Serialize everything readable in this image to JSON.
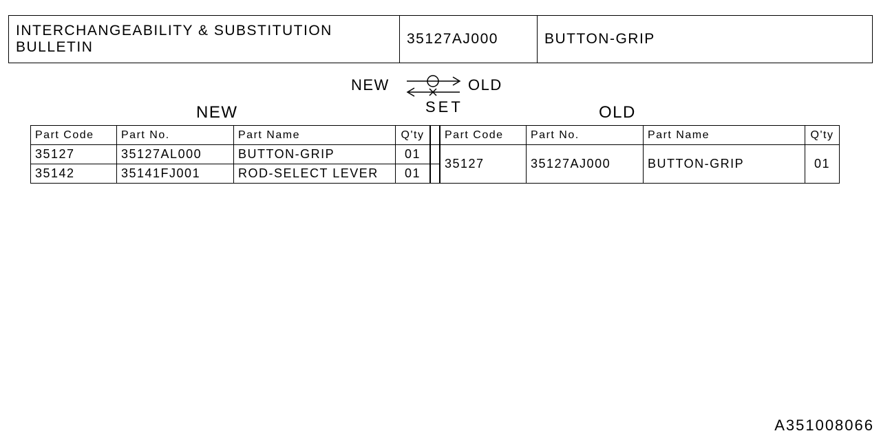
{
  "header": {
    "title": "INTERCHANGEABILITY & SUBSTITUTION BULLETIN",
    "part_no": "35127AJ000",
    "part_name": "BUTTON-GRIP"
  },
  "diagram": {
    "new": "NEW",
    "old": "OLD",
    "set": "SET"
  },
  "sections": {
    "new": "NEW",
    "old": "OLD"
  },
  "columns": {
    "code": "Part Code",
    "no": "Part No.",
    "name": "Part Name",
    "qty": "Q'ty"
  },
  "new_rows": [
    {
      "code": "35127",
      "no": "35127AL000",
      "name": "BUTTON-GRIP",
      "qty": "01"
    },
    {
      "code": "35142",
      "no": "35141FJ001",
      "name": "ROD-SELECT LEVER",
      "qty": "01"
    }
  ],
  "old_rows": [
    {
      "code": "35127",
      "no": "35127AJ000",
      "name": "BUTTON-GRIP",
      "qty": "01"
    }
  ],
  "doc_id": "A351008066",
  "style": {
    "border_color": "#000000",
    "background": "#ffffff",
    "text_color": "#000000",
    "header_fontsize": 21,
    "section_fontsize": 24,
    "cell_fontsize": 18,
    "header_cell_fontsize": 16,
    "docid_fontsize": 22
  }
}
